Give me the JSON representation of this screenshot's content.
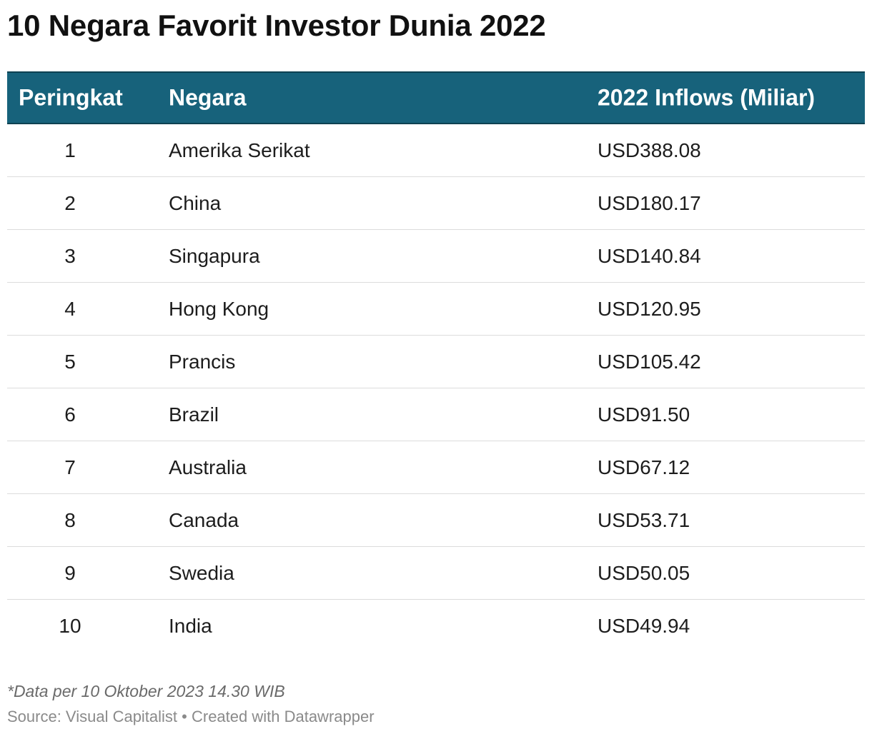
{
  "title": "10 Negara Favorit Investor Dunia 2022",
  "table": {
    "headers": {
      "rank": "Peringkat",
      "country": "Negara",
      "value": "2022 Inflows (Miliar)"
    },
    "rows": [
      {
        "rank": "1",
        "country": "Amerika Serikat",
        "value": "USD388.08"
      },
      {
        "rank": "2",
        "country": "China",
        "value": "USD180.17"
      },
      {
        "rank": "3",
        "country": "Singapura",
        "value": "USD140.84"
      },
      {
        "rank": "4",
        "country": "Hong Kong",
        "value": "USD120.95"
      },
      {
        "rank": "5",
        "country": "Prancis",
        "value": "USD105.42"
      },
      {
        "rank": "6",
        "country": "Brazil",
        "value": "USD91.50"
      },
      {
        "rank": "7",
        "country": "Australia",
        "value": "USD67.12"
      },
      {
        "rank": "8",
        "country": "Canada",
        "value": "USD53.71"
      },
      {
        "rank": "9",
        "country": "Swedia",
        "value": "USD50.05"
      },
      {
        "rank": "10",
        "country": "India",
        "value": "USD49.94"
      }
    ]
  },
  "note": "*Data per 10 Oktober 2023 14.30 WIB",
  "source": "Source: Visual Capitalist • Created with Datawrapper",
  "colors": {
    "header_background": "#17627b",
    "header_text": "#ffffff",
    "row_divider": "#dcdcdc"
  },
  "chart_data": {
    "type": "table",
    "title": "10 Negara Favorit Investor Dunia 2022",
    "columns": [
      "Peringkat",
      "Negara",
      "2022 Inflows (Miliar)"
    ],
    "rows": [
      [
        1,
        "Amerika Serikat",
        "USD388.08"
      ],
      [
        2,
        "China",
        "USD180.17"
      ],
      [
        3,
        "Singapura",
        "USD140.84"
      ],
      [
        4,
        "Hong Kong",
        "USD120.95"
      ],
      [
        5,
        "Prancis",
        "USD105.42"
      ],
      [
        6,
        "Brazil",
        "USD91.50"
      ],
      [
        7,
        "Australia",
        "USD67.12"
      ],
      [
        8,
        "Canada",
        "USD53.71"
      ],
      [
        9,
        "Swedia",
        "USD50.05"
      ],
      [
        10,
        "India",
        "USD49.94"
      ]
    ]
  }
}
